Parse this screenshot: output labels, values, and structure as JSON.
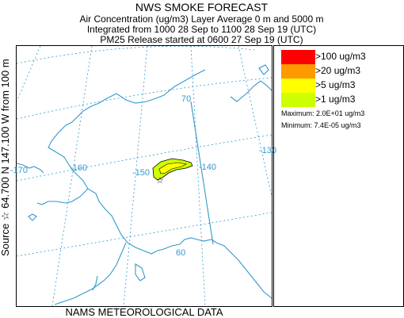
{
  "header": {
    "title": "NWS SMOKE FORECAST",
    "line1": "Air Concentration (ug/m3) Layer Average    0 m and  5000 m",
    "line2": "Integrated from 1000 28 Sep to 1100 28 Sep 19 (UTC)",
    "line3": "PM25 Release started at 0600 27 Sep 19 (UTC)"
  },
  "side_label": "Source ☆ 64.700  N 147.100  W     from  100 m",
  "footer": "NAMS METEOROLOGICAL DATA",
  "map": {
    "coastline_color": "#3399cc",
    "gridline_color": "#3399cc",
    "latitude_labels": [
      "70",
      "60"
    ],
    "longitude_labels": [
      "-170",
      "-160",
      "-150",
      "-140",
      "-130"
    ],
    "source_marker": "star-icon",
    "plume_colors": [
      "#ccff00",
      "#ffff00"
    ]
  },
  "legend": {
    "items": [
      {
        "label": ">100 ug/m3",
        "color": "#ff0000"
      },
      {
        "label": ">20 ug/m3",
        "color": "#ff9900"
      },
      {
        "label": ">5 ug/m3",
        "color": "#ffff00"
      },
      {
        "label": ">1 ug/m3",
        "color": "#ccff00"
      }
    ],
    "maximum": "Maximum: 2.0E+01 ug/m3",
    "minimum": "Minimum: 7.4E-05 ug/m3"
  }
}
